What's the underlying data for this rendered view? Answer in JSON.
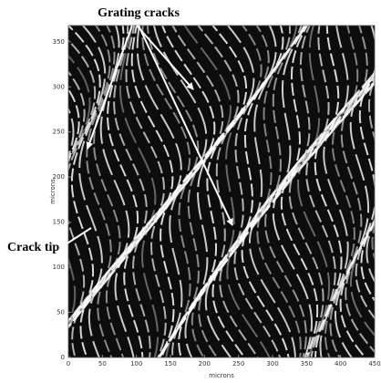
{
  "chart_data": {
    "type": "image",
    "xlabel": "microns",
    "ylabel": "microns",
    "xlim": [
      0,
      450
    ],
    "ylim": [
      0,
      368
    ],
    "xticks": [
      0,
      50,
      100,
      150,
      200,
      250,
      300,
      350,
      400,
      450
    ],
    "yticks": [
      0,
      50,
      100,
      150,
      200,
      250,
      300,
      350
    ],
    "annotations": [
      "Grating cracks",
      "Crack tip"
    ]
  }
}
